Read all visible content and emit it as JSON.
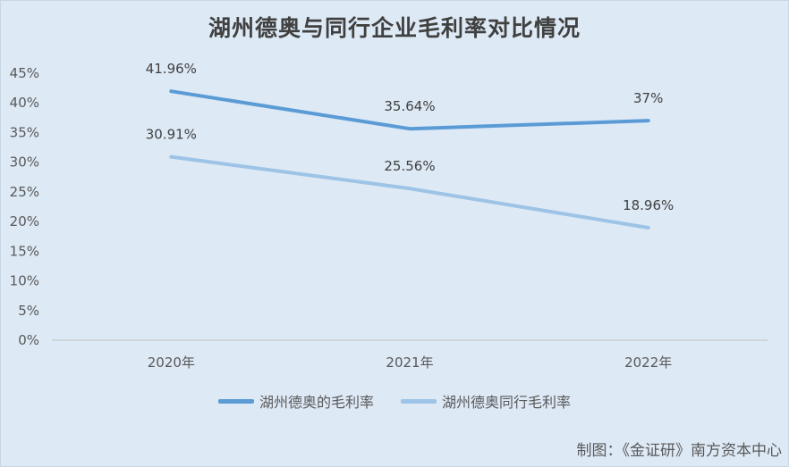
{
  "chart_data": {
    "type": "line",
    "title": "湖州德奥与同行企业毛利率对比情况",
    "categories": [
      "2020年",
      "2021年",
      "2022年"
    ],
    "ylim": [
      0,
      45
    ],
    "yticks": [
      "0%",
      "5%",
      "10%",
      "15%",
      "20%",
      "25%",
      "30%",
      "35%",
      "40%",
      "45%"
    ],
    "series": [
      {
        "name": "湖州德奥的毛利率",
        "values": [
          41.96,
          35.64,
          37
        ],
        "labels": [
          "41.96%",
          "35.64%",
          "37%"
        ],
        "color": "#5b9bd5"
      },
      {
        "name": "湖州德奥同行毛利率",
        "values": [
          30.91,
          25.56,
          18.96
        ],
        "labels": [
          "30.91%",
          "25.56%",
          "18.96%"
        ],
        "color": "#9dc3e6"
      }
    ],
    "grid": false,
    "legend_position": "bottom"
  },
  "source_note": "制图：《金证研》南方资本中心"
}
